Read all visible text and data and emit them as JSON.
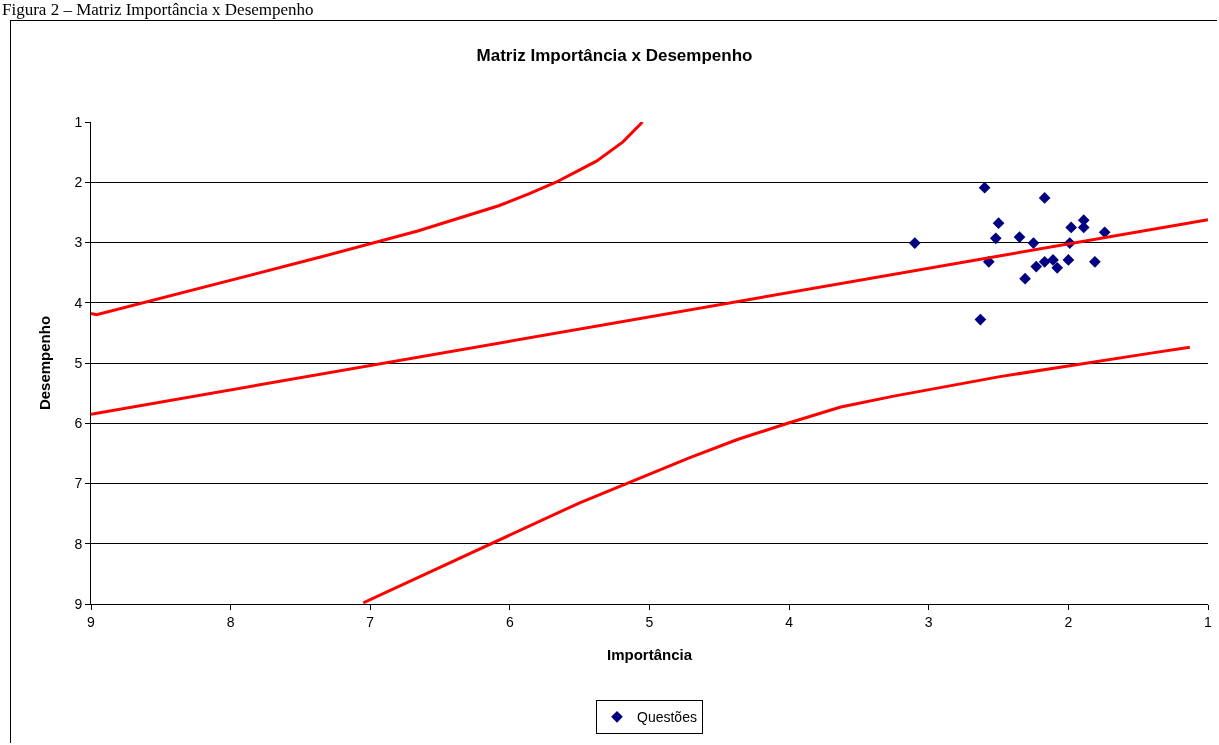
{
  "chart_data": {
    "type": "scatter",
    "title": "Matriz Importância x Desempenho",
    "xlabel": "Importância",
    "ylabel": "Desempenho",
    "annotations": [
      "Figura 2 – Matriz Importância x Desempenho"
    ],
    "xlim": [
      9,
      1
    ],
    "xticks": [
      9,
      8,
      7,
      6,
      5,
      4,
      3,
      2,
      1
    ],
    "ylim": [
      9,
      1
    ],
    "yticks": [
      1,
      2,
      3,
      4,
      5,
      6,
      7,
      8,
      9
    ],
    "grid": "y",
    "legend": "bottom",
    "series": [
      {
        "name": "Questões",
        "color": "#000080",
        "marker": "diamond",
        "x": [
          3.1,
          2.6,
          2.17,
          2.5,
          2.52,
          2.35,
          2.25,
          1.98,
          1.89,
          1.89,
          1.74,
          1.99,
          2.57,
          2.17,
          2.23,
          2.11,
          2.08,
          2.0,
          1.81,
          2.31,
          2.63
        ],
        "values": [
          3.01,
          2.09,
          2.26,
          2.68,
          2.93,
          2.91,
          3.01,
          2.75,
          2.63,
          2.75,
          2.83,
          3.01,
          3.32,
          3.32,
          3.4,
          3.29,
          3.42,
          3.29,
          3.32,
          3.6,
          4.28
        ]
      },
      {
        "type": "line",
        "marker": "none",
        "color": "#ff0000",
        "x": [
          9,
          8.96,
          7.37,
          6.66,
          6.08,
          5.86,
          5.67,
          5.52,
          5.38,
          5.19,
          5.05
        ],
        "values": [
          4.18,
          4.2,
          3.25,
          2.81,
          2.39,
          2.19,
          2.0,
          1.82,
          1.65,
          1.33,
          1.0
        ]
      },
      {
        "type": "line",
        "marker": "none",
        "color": "#ff0000",
        "x": [
          9,
          1
        ],
        "values": [
          5.85,
          2.62
        ]
      },
      {
        "type": "line",
        "marker": "none",
        "color": "#ff0000",
        "x": [
          7.05,
          5.5,
          4.72,
          4.37,
          4.01,
          3.63,
          3.25,
          2.5,
          1.42,
          1.13
        ],
        "values": [
          8.98,
          7.32,
          6.58,
          6.27,
          6.0,
          5.73,
          5.55,
          5.23,
          4.84,
          4.74
        ]
      }
    ]
  }
}
